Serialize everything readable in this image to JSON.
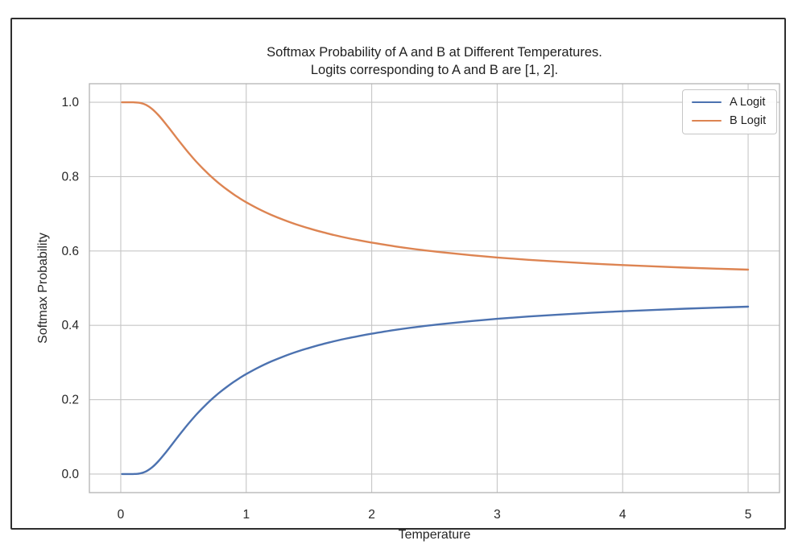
{
  "colors": {
    "frame": "#2e2e2e",
    "grid": "#c6c6c6",
    "spine": "#b3b3b3",
    "text": "#262626",
    "background": "#ffffff"
  },
  "chart_data": {
    "type": "line",
    "title": "Softmax Probability of A and B at Different Temperatures. Logits corresponding to A and B are [1, 2].",
    "title_lines": [
      "Softmax Probability of A and B at Different Temperatures.",
      "Logits corresponding to A and B are [1, 2]."
    ],
    "xlabel": "Temperature",
    "ylabel": "Softmax Probability",
    "xlim": [
      -0.25,
      5.25
    ],
    "ylim": [
      -0.05,
      1.05
    ],
    "xticks": [
      0,
      1,
      2,
      3,
      4,
      5
    ],
    "xtick_labels": [
      "0",
      "1",
      "2",
      "3",
      "4",
      "5"
    ],
    "yticks": [
      0.0,
      0.2,
      0.4,
      0.6,
      0.8,
      1.0
    ],
    "ytick_labels": [
      "0.0",
      "0.2",
      "0.4",
      "0.6",
      "0.8",
      "1.0"
    ],
    "grid": true,
    "legend_position": "upper right",
    "x": [
      0.01,
      0.05,
      0.1,
      0.15,
      0.2,
      0.25,
      0.3,
      0.35,
      0.4,
      0.45,
      0.5,
      0.55,
      0.6,
      0.65,
      0.7,
      0.75,
      0.8,
      0.85,
      0.9,
      0.95,
      1.0,
      1.1,
      1.2,
      1.3,
      1.4,
      1.5,
      1.6,
      1.7,
      1.8,
      1.9,
      2.0,
      2.2,
      2.4,
      2.6,
      2.8,
      3.0,
      3.25,
      3.5,
      3.75,
      4.0,
      4.25,
      4.5,
      4.75,
      5.0
    ],
    "series": [
      {
        "name": "A Logit",
        "color": "#4c72b0",
        "values": [
          0.0,
          0.0,
          0.0,
          0.0013,
          0.0067,
          0.018,
          0.0344,
          0.0543,
          0.0759,
          0.0978,
          0.1192,
          0.1397,
          0.1589,
          0.1767,
          0.1933,
          0.2086,
          0.2227,
          0.2356,
          0.2477,
          0.2587,
          0.2689,
          0.2872,
          0.3029,
          0.3166,
          0.3287,
          0.3392,
          0.3487,
          0.357,
          0.3646,
          0.3714,
          0.3775,
          0.3883,
          0.3973,
          0.405,
          0.4116,
          0.4174,
          0.4237,
          0.429,
          0.4337,
          0.4378,
          0.4414,
          0.4447,
          0.4475,
          0.4502
        ]
      },
      {
        "name": "B Logit",
        "color": "#dd8452",
        "values": [
          1.0,
          1.0,
          1.0,
          0.9987,
          0.9933,
          0.982,
          0.9656,
          0.9457,
          0.9241,
          0.9022,
          0.8808,
          0.8603,
          0.8411,
          0.8233,
          0.8067,
          0.7914,
          0.7773,
          0.7644,
          0.7523,
          0.7413,
          0.7311,
          0.7128,
          0.6971,
          0.6834,
          0.6713,
          0.6608,
          0.6513,
          0.643,
          0.6354,
          0.6286,
          0.6225,
          0.6117,
          0.6027,
          0.595,
          0.5884,
          0.5826,
          0.5763,
          0.571,
          0.5663,
          0.5622,
          0.5586,
          0.5553,
          0.5525,
          0.5498
        ]
      }
    ]
  }
}
